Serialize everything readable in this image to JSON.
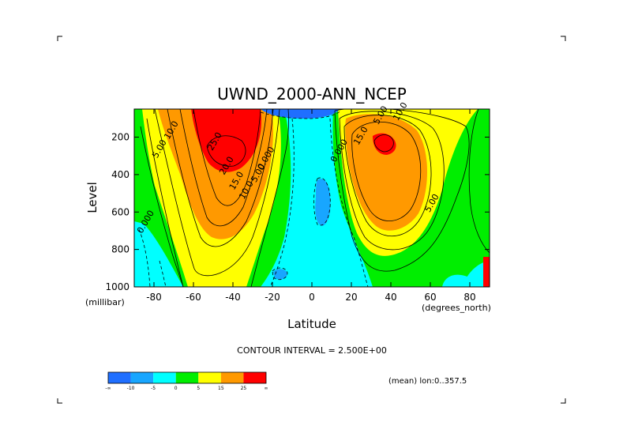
{
  "chart_data": {
    "type": "heatmap",
    "title": "UWND_2000-ANN_NCEP",
    "xlabel": "Latitude",
    "ylabel": "Level",
    "x_units": "(degrees_north)",
    "y_units": "(millibar)",
    "xlim": [
      -90,
      90
    ],
    "ylim": [
      1000,
      50
    ],
    "y_reversed": true,
    "x_ticks": [
      -80,
      -60,
      -40,
      -20,
      0,
      20,
      40,
      60,
      80
    ],
    "y_ticks": [
      200,
      400,
      600,
      800,
      1000
    ],
    "contour_interval_text": "CONTOUR INTERVAL = 2.500E+00",
    "mean_note": "(mean) lon:0..357.5",
    "contour_labels": [
      {
        "text": "25.0",
        "lat": -48,
        "lev": 230
      },
      {
        "text": "20.0",
        "lat": -42,
        "lev": 360
      },
      {
        "text": "15.0",
        "lat": -37,
        "lev": 440
      },
      {
        "text": "10.0",
        "lat": -32,
        "lev": 490
      },
      {
        "text": "10.0",
        "lat": -70,
        "lev": 170
      },
      {
        "text": "5.00",
        "lat": -76,
        "lev": 270
      },
      {
        "text": "5.00",
        "lat": -26,
        "lev": 400
      },
      {
        "text": "0.000",
        "lat": -22,
        "lev": 320
      },
      {
        "text": "0.000",
        "lat": -83,
        "lev": 660
      },
      {
        "text": "0.000",
        "lat": 15,
        "lev": 280
      },
      {
        "text": "15.0",
        "lat": 26,
        "lev": 200
      },
      {
        "text": "5.00",
        "lat": 62,
        "lev": 560
      },
      {
        "text": "5.00",
        "lat": 36,
        "lev": 90
      },
      {
        "text": "10.0",
        "lat": 46,
        "lev": 70
      }
    ],
    "colorbar": {
      "colors": [
        "#1f6fff",
        "#18a6ff",
        "#00ffff",
        "#00ee00",
        "#ffff00",
        "#ff9900",
        "#ff0000"
      ],
      "labels": [
        "-∞",
        "-10",
        "-5",
        "0",
        "5",
        "15",
        "25",
        "∞"
      ]
    }
  }
}
